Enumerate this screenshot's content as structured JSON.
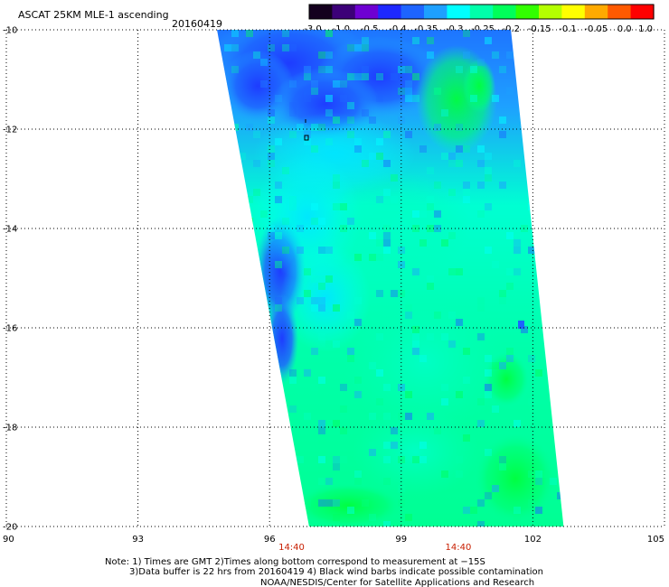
{
  "header": {
    "title": "ASCAT 25KM MLE-1 ascending",
    "date": "20160419"
  },
  "colorbar": {
    "labels": [
      "-3.0",
      "-1.0",
      "-0.5",
      "-0.4",
      "-0.35",
      "-0.3",
      "-0.25",
      "-0.2",
      "-0.15",
      "-0.1",
      "-0.05",
      "0.0",
      "1.0"
    ],
    "colors": [
      "#14001e",
      "#3c0078",
      "#6e00d2",
      "#1e28ff",
      "#1e64ff",
      "#1ea0ff",
      "#00ffff",
      "#00ffaa",
      "#00ff5a",
      "#32ff00",
      "#b4ff00",
      "#ffff00",
      "#ffaa00",
      "#ff5a00",
      "#ff0000"
    ]
  },
  "map": {
    "lon_ticks": [
      "90",
      "93",
      "96",
      "99",
      "102",
      "105"
    ],
    "lon_values": [
      90,
      93,
      96,
      99,
      102,
      105
    ],
    "lat_ticks": [
      "-10",
      "-12",
      "-14",
      "-16",
      "-18",
      "-20"
    ],
    "lat_values": [
      -10,
      -12,
      -14,
      -16,
      -18,
      -20
    ],
    "lon_range": [
      90,
      105
    ],
    "lat_range": [
      -20,
      -10
    ],
    "pass_times": [
      {
        "label": "14:40",
        "lon": 96.5
      },
      {
        "label": "14:40",
        "lon": 100.3
      }
    ],
    "swath_corners": {
      "top_left": [
        94.8,
        -10
      ],
      "top_right": [
        101.5,
        -10
      ],
      "bottom_right": [
        102.7,
        -20
      ],
      "bottom_left": [
        96.9,
        -20
      ]
    }
  },
  "notes": {
    "line1": "Note: 1) Times are GMT 2)Times along bottom correspond to measurement at −15S",
    "line2": "3)Data buffer is 22 hrs from 20160419 4) Black wind barbs indicate possible contamination",
    "line3": "NOAA/NESDIS/Center for Satellite Applications and Research"
  }
}
